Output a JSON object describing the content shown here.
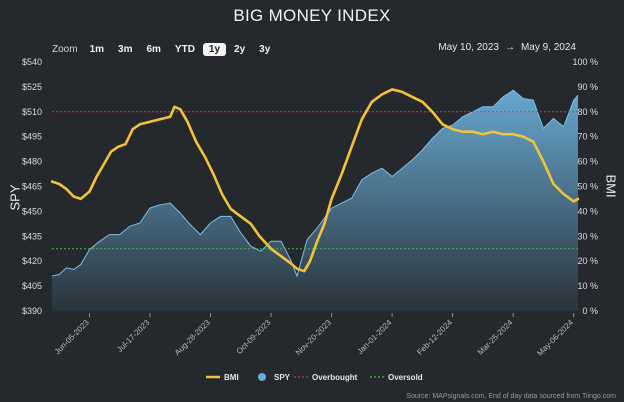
{
  "title": "BIG MONEY INDEX",
  "zoom": {
    "label": "Zoom",
    "buttons": [
      "1m",
      "3m",
      "6m",
      "YTD",
      "1y",
      "2y",
      "3y"
    ],
    "active": "1y"
  },
  "date_range": {
    "from": "May 10, 2023",
    "arrow": "→",
    "to": "May 9, 2024"
  },
  "footer": "Source: MAPsignals.com, End of day data sourced from Tiingo.com",
  "colors": {
    "bmi": "#f2c33a",
    "spy": "#6aaed8",
    "overbought": "#d9334a",
    "oversold": "#3cb84a",
    "background": "#25292d"
  },
  "chart_data": {
    "type": "line",
    "title": "BIG MONEY INDEX",
    "ylabel_left": "SPY",
    "ylabel_right": "BMI",
    "ylim_left": [
      390,
      540
    ],
    "ylim_right": [
      0,
      100
    ],
    "yticks_left": [
      "$390",
      "$405",
      "$420",
      "$435",
      "$450",
      "$465",
      "$480",
      "$495",
      "$510",
      "$525",
      "$540"
    ],
    "yticks_right": [
      "0 %",
      "10 %",
      "20 %",
      "30 %",
      "40 %",
      "50 %",
      "60 %",
      "70 %",
      "80 %",
      "90 %",
      "100 %"
    ],
    "x_range": [
      "2023-05-10",
      "2024-05-09"
    ],
    "xticks": [
      "Jun-05-2023",
      "Jul-17-2023",
      "Aug-28-2023",
      "Oct-09-2023",
      "Nov-20-2023",
      "Jan-01-2024",
      "Feb-12-2024",
      "Mar-25-2024",
      "May-06-2024"
    ],
    "grid": false,
    "legend_position": "bottom",
    "series": [
      {
        "name": "BMI",
        "axis": "right",
        "points": [
          [
            "2023-05-10",
            52
          ],
          [
            "2023-05-15",
            51
          ],
          [
            "2023-05-20",
            49
          ],
          [
            "2023-05-25",
            46
          ],
          [
            "2023-05-30",
            45
          ],
          [
            "2023-06-05",
            48
          ],
          [
            "2023-06-10",
            54
          ],
          [
            "2023-06-15",
            59
          ],
          [
            "2023-06-20",
            64
          ],
          [
            "2023-06-25",
            66
          ],
          [
            "2023-06-30",
            67
          ],
          [
            "2023-07-05",
            73
          ],
          [
            "2023-07-10",
            75
          ],
          [
            "2023-07-17",
            76
          ],
          [
            "2023-07-24",
            77
          ],
          [
            "2023-07-31",
            78
          ],
          [
            "2023-08-03",
            82
          ],
          [
            "2023-08-07",
            81
          ],
          [
            "2023-08-12",
            76
          ],
          [
            "2023-08-18",
            68
          ],
          [
            "2023-08-24",
            62
          ],
          [
            "2023-08-30",
            55
          ],
          [
            "2023-09-05",
            47
          ],
          [
            "2023-09-11",
            41
          ],
          [
            "2023-09-18",
            38
          ],
          [
            "2023-09-25",
            35
          ],
          [
            "2023-10-01",
            30
          ],
          [
            "2023-10-09",
            25
          ],
          [
            "2023-10-16",
            22
          ],
          [
            "2023-10-23",
            19
          ],
          [
            "2023-10-27",
            17
          ],
          [
            "2023-11-01",
            16
          ],
          [
            "2023-11-05",
            20
          ],
          [
            "2023-11-10",
            28
          ],
          [
            "2023-11-15",
            35
          ],
          [
            "2023-11-20",
            45
          ],
          [
            "2023-11-27",
            55
          ],
          [
            "2023-12-04",
            66
          ],
          [
            "2023-12-11",
            77
          ],
          [
            "2023-12-18",
            84
          ],
          [
            "2023-12-25",
            87
          ],
          [
            "2024-01-01",
            89
          ],
          [
            "2024-01-08",
            88
          ],
          [
            "2024-01-15",
            86
          ],
          [
            "2024-01-22",
            84
          ],
          [
            "2024-01-29",
            80
          ],
          [
            "2024-02-05",
            75
          ],
          [
            "2024-02-12",
            73
          ],
          [
            "2024-02-19",
            72
          ],
          [
            "2024-02-26",
            72
          ],
          [
            "2024-03-04",
            71
          ],
          [
            "2024-03-11",
            72
          ],
          [
            "2024-03-18",
            71
          ],
          [
            "2024-03-25",
            71
          ],
          [
            "2024-04-01",
            70
          ],
          [
            "2024-04-08",
            68
          ],
          [
            "2024-04-15",
            60
          ],
          [
            "2024-04-22",
            51
          ],
          [
            "2024-04-29",
            47
          ],
          [
            "2024-05-06",
            44
          ],
          [
            "2024-05-09",
            45
          ]
        ]
      },
      {
        "name": "SPY",
        "axis": "left",
        "points": [
          [
            "2023-05-10",
            411
          ],
          [
            "2023-05-15",
            412
          ],
          [
            "2023-05-20",
            416
          ],
          [
            "2023-05-25",
            415
          ],
          [
            "2023-05-30",
            418
          ],
          [
            "2023-06-05",
            427
          ],
          [
            "2023-06-12",
            432
          ],
          [
            "2023-06-19",
            436
          ],
          [
            "2023-06-26",
            436
          ],
          [
            "2023-07-03",
            441
          ],
          [
            "2023-07-10",
            443
          ],
          [
            "2023-07-17",
            452
          ],
          [
            "2023-07-24",
            454
          ],
          [
            "2023-07-31",
            455
          ],
          [
            "2023-08-07",
            449
          ],
          [
            "2023-08-14",
            442
          ],
          [
            "2023-08-21",
            436
          ],
          [
            "2023-08-28",
            443
          ],
          [
            "2023-09-04",
            447
          ],
          [
            "2023-09-11",
            447
          ],
          [
            "2023-09-18",
            437
          ],
          [
            "2023-09-25",
            429
          ],
          [
            "2023-10-02",
            426
          ],
          [
            "2023-10-09",
            432
          ],
          [
            "2023-10-16",
            432
          ],
          [
            "2023-10-23",
            420
          ],
          [
            "2023-10-27",
            411
          ],
          [
            "2023-11-03",
            433
          ],
          [
            "2023-11-10",
            440
          ],
          [
            "2023-11-20",
            452
          ],
          [
            "2023-11-27",
            455
          ],
          [
            "2023-12-04",
            458
          ],
          [
            "2023-12-11",
            469
          ],
          [
            "2023-12-18",
            473
          ],
          [
            "2023-12-25",
            476
          ],
          [
            "2024-01-01",
            471
          ],
          [
            "2024-01-08",
            476
          ],
          [
            "2024-01-15",
            481
          ],
          [
            "2024-01-22",
            487
          ],
          [
            "2024-01-29",
            494
          ],
          [
            "2024-02-05",
            500
          ],
          [
            "2024-02-12",
            502
          ],
          [
            "2024-02-19",
            507
          ],
          [
            "2024-02-26",
            510
          ],
          [
            "2024-03-04",
            513
          ],
          [
            "2024-03-11",
            513
          ],
          [
            "2024-03-18",
            519
          ],
          [
            "2024-03-25",
            523
          ],
          [
            "2024-04-01",
            518
          ],
          [
            "2024-04-08",
            517
          ],
          [
            "2024-04-15",
            500
          ],
          [
            "2024-04-22",
            506
          ],
          [
            "2024-04-29",
            501
          ],
          [
            "2024-05-06",
            517
          ],
          [
            "2024-05-09",
            520
          ]
        ]
      },
      {
        "name": "Overbought",
        "axis": "right",
        "value": 80
      },
      {
        "name": "Oversold",
        "axis": "right",
        "value": 25
      }
    ]
  }
}
